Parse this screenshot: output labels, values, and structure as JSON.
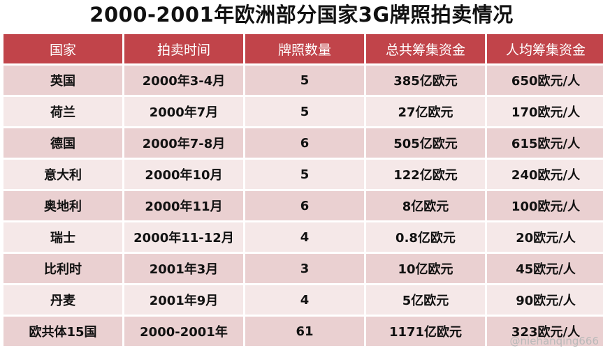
{
  "title": "2000-2001年欧洲部分国家3G牌照拍卖情况",
  "table": {
    "headers": [
      "国家",
      "拍卖时间",
      "牌照数量",
      "总共筹集资金",
      "人均筹集资金"
    ],
    "rows": [
      [
        "英国",
        "2000年3-4月",
        "5",
        "385亿欧元",
        "650欧元/人"
      ],
      [
        "荷兰",
        "2000年7月",
        "5",
        "27亿欧元",
        "170欧元/人"
      ],
      [
        "德国",
        "2000年7-8月",
        "6",
        "505亿欧元",
        "615欧元/人"
      ],
      [
        "意大利",
        "2000年10月",
        "5",
        "122亿欧元",
        "240欧元/人"
      ],
      [
        "奥地利",
        "2000年11月",
        "6",
        "8亿欧元",
        "100欧元/人"
      ],
      [
        "瑞士",
        "2000年11-12月",
        "4",
        "0.8亿欧元",
        "20欧元/人"
      ],
      [
        "比利时",
        "2001年3月",
        "3",
        "10亿欧元",
        "45欧元/人"
      ],
      [
        "丹麦",
        "2001年9月",
        "4",
        "5亿欧元",
        "90欧元/人"
      ],
      [
        "欧共体15国",
        "2000-2001年",
        "61",
        "1171亿欧元",
        "323欧元/人"
      ]
    ]
  },
  "watermark": "@niehanqing666",
  "colors": {
    "header_bg": "#c1444a",
    "row_odd_bg": "#ead0d1",
    "row_even_bg": "#f5e8e8"
  }
}
